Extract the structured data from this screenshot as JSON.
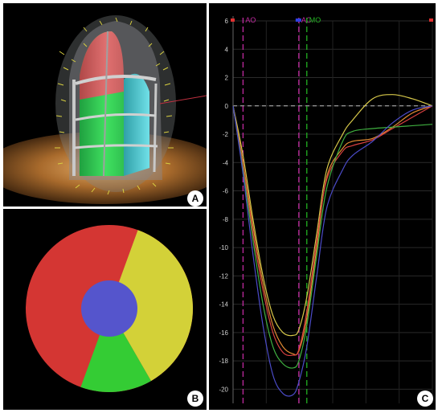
{
  "panels": {
    "a": {
      "letter": "A"
    },
    "b": {
      "letter": "B"
    },
    "c": {
      "letter": "C"
    }
  },
  "bullseye": {
    "segments": [
      {
        "name": "red",
        "color": "#d43633",
        "start_deg": 20,
        "end_deg": 200
      },
      {
        "name": "yellow",
        "color": "#d3d138",
        "start_deg": 20,
        "end_deg": 150
      },
      {
        "name": "green",
        "color": "#34cc34",
        "start_deg": 150,
        "end_deg": 200
      }
    ],
    "center_color": "#5555cc"
  },
  "chart_data": {
    "type": "line",
    "ylim": [
      -21,
      6
    ],
    "yticks": [
      6,
      4,
      2,
      0,
      -2,
      -4,
      -6,
      -8,
      -10,
      -12,
      -14,
      -16,
      -18,
      -20
    ],
    "markers": [
      {
        "label": "AO",
        "color": "#c02aa0"
      },
      {
        "label": "AC",
        "color": "#c02aa0"
      },
      {
        "label": "MO",
        "color": "#22b022"
      }
    ],
    "marker_positions": [
      0.05,
      0.33,
      0.37
    ],
    "grid": true,
    "legend": "none",
    "series": [
      {
        "color": "#e08a32",
        "x": [
          0,
          0.05,
          0.1,
          0.15,
          0.2,
          0.25,
          0.3,
          0.33,
          0.37,
          0.42,
          0.47,
          0.55,
          0.6,
          0.7,
          0.8,
          0.9,
          1.0
        ],
        "values": [
          0,
          -4,
          -8.5,
          -12.5,
          -15.5,
          -17,
          -17.5,
          -17.3,
          -15,
          -10,
          -5,
          -3,
          -2.5,
          -2.3,
          -1.5,
          -0.5,
          0
        ]
      },
      {
        "color": "#d8c94a",
        "x": [
          0,
          0.05,
          0.1,
          0.15,
          0.2,
          0.25,
          0.3,
          0.33,
          0.37,
          0.42,
          0.47,
          0.55,
          0.6,
          0.7,
          0.8,
          0.9,
          1.0
        ],
        "values": [
          0,
          -3.5,
          -8,
          -12,
          -14.8,
          -16,
          -16.2,
          -15.8,
          -13.5,
          -9,
          -4.5,
          -2,
          -1,
          0.5,
          0.8,
          0.5,
          0
        ]
      },
      {
        "color": "#d84040",
        "x": [
          0,
          0.05,
          0.1,
          0.15,
          0.2,
          0.25,
          0.3,
          0.33,
          0.37,
          0.42,
          0.47,
          0.55,
          0.6,
          0.7,
          0.8,
          0.9,
          1.0
        ],
        "values": [
          0,
          -4.2,
          -9,
          -13,
          -16,
          -17.4,
          -17.6,
          -17.2,
          -14.5,
          -9.5,
          -5.2,
          -3.2,
          -2.8,
          -2.4,
          -1.6,
          -0.8,
          0
        ]
      },
      {
        "color": "#3fb040",
        "x": [
          0,
          0.05,
          0.1,
          0.15,
          0.2,
          0.25,
          0.3,
          0.33,
          0.37,
          0.42,
          0.47,
          0.55,
          0.6,
          0.7,
          0.8,
          0.9,
          1.0
        ],
        "values": [
          0,
          -4.5,
          -9.5,
          -14,
          -17,
          -18.2,
          -18.5,
          -18,
          -15.5,
          -10.5,
          -5.8,
          -2.5,
          -1.8,
          -1.6,
          -1.5,
          -1.4,
          -1.3
        ]
      },
      {
        "color": "#4b4bc8",
        "x": [
          0,
          0.05,
          0.1,
          0.15,
          0.2,
          0.25,
          0.3,
          0.33,
          0.37,
          0.42,
          0.47,
          0.55,
          0.6,
          0.7,
          0.8,
          0.9,
          1.0
        ],
        "values": [
          0,
          -4.8,
          -10.5,
          -15.5,
          -19,
          -20.3,
          -20.4,
          -19.5,
          -17,
          -12,
          -7.2,
          -4.5,
          -3.5,
          -2.5,
          -1.2,
          -0.3,
          0
        ]
      }
    ]
  }
}
